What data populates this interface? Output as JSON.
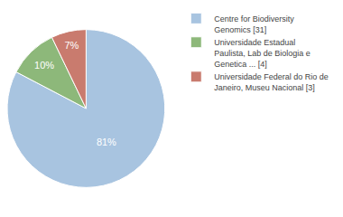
{
  "chart_data": {
    "type": "pie",
    "categories": [
      "Centre for Biodiversity\nGenomics [31]",
      "Universidade Estadual\nPaulista, Lab de Biologia e\nGenetica ... [4]",
      "Universidade Federal do Rio de\nJaneiro, Museu Nacional [3]"
    ],
    "values": [
      81,
      10,
      7
    ],
    "value_labels": [
      "81%",
      "10%",
      "7%"
    ],
    "colors": [
      "#a8c4e0",
      "#8db87a",
      "#c97b6e"
    ],
    "data_labels": true,
    "legend": "right"
  }
}
